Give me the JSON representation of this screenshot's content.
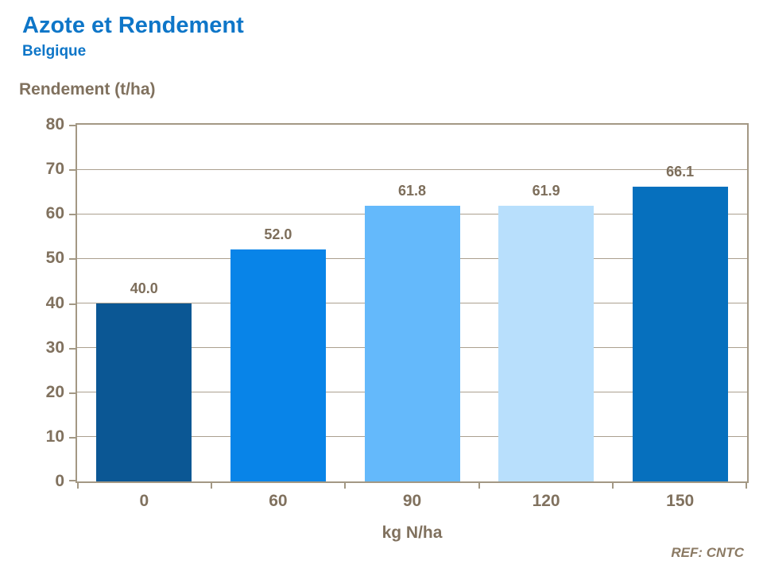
{
  "header": {
    "title": "Azote et Rendement",
    "subtitle": "Belgique"
  },
  "chart_data": {
    "type": "bar",
    "title": "Azote et Rendement",
    "subtitle": "Belgique",
    "categories": [
      "0",
      "60",
      "90",
      "120",
      "150"
    ],
    "values": [
      40.0,
      52.0,
      61.8,
      61.9,
      66.1
    ],
    "value_labels": [
      "40.0",
      "52.0",
      "61.8",
      "61.9",
      "66.1"
    ],
    "bar_colors": [
      "#0B5794",
      "#0884E8",
      "#64B9FB",
      "#B8DFFC",
      "#0670BE"
    ],
    "xlabel": "kg N/ha",
    "ylabel": "Rendement (t/ha)",
    "ylim": [
      0,
      80
    ],
    "yticks": [
      0,
      10,
      20,
      30,
      40,
      50,
      60,
      70,
      80
    ],
    "grid": "horizontal",
    "legend": "none"
  },
  "footer": {
    "ref": "REF: CNTC"
  },
  "colors": {
    "title_blue": "#0E76C8",
    "axis_text": "#80715E",
    "data_label_text": "#7D6E5B",
    "gridline": "#ABA08F",
    "axis_border": "#A39884",
    "ref_text": "#8B7A64"
  }
}
